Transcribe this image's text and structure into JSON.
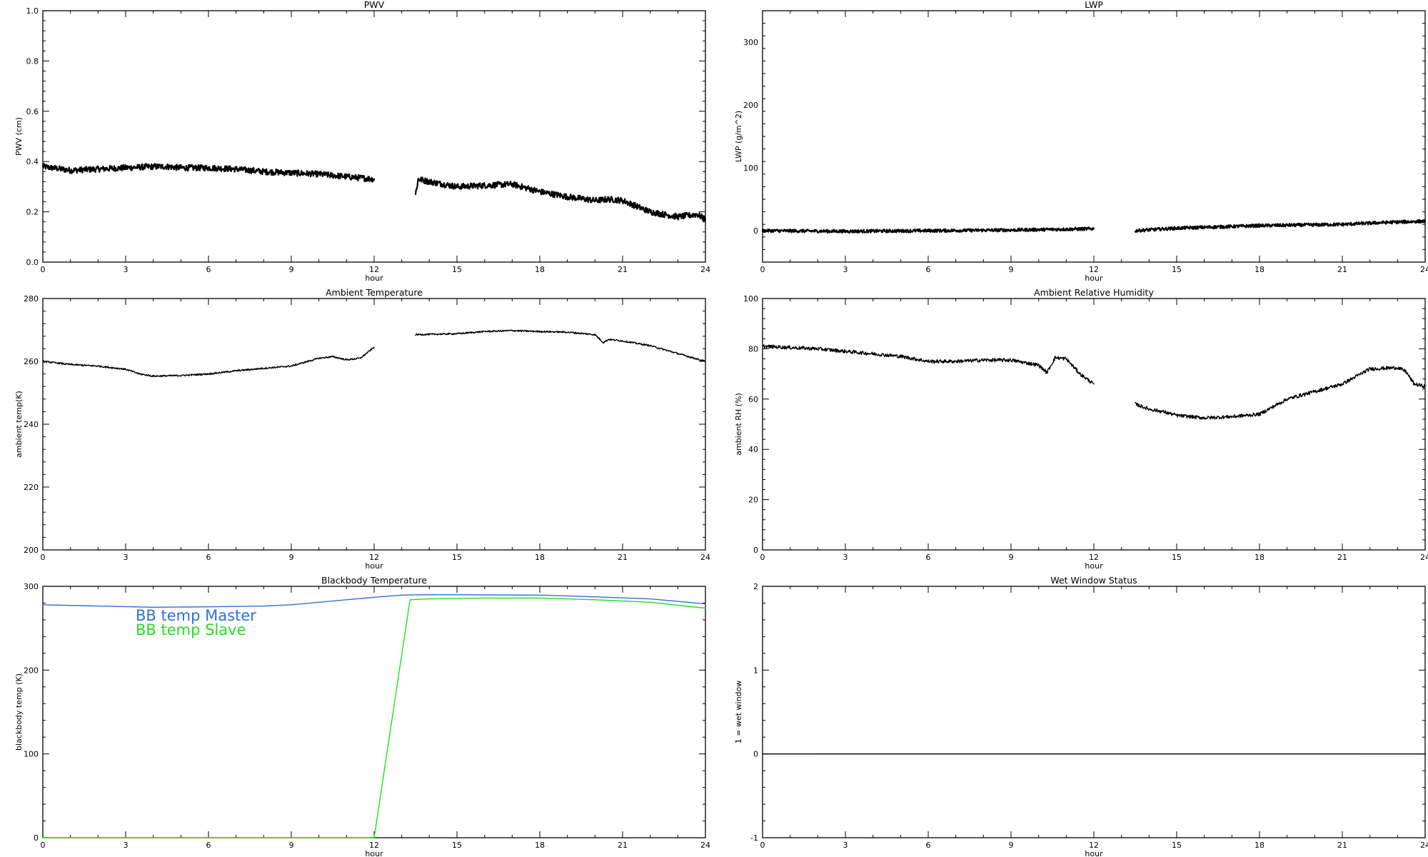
{
  "chart_data": [
    {
      "id": "pwv",
      "type": "line",
      "title": "PWV",
      "xlabel": "hour",
      "ylabel": "PWV (cm)",
      "xlim": [
        0,
        24
      ],
      "ylim": [
        0,
        1.0
      ],
      "xticks": [
        "0",
        "3",
        "6",
        "9",
        "12",
        "15",
        "18",
        "21",
        "24"
      ],
      "yticks": [
        "0.0",
        "0.2",
        "0.4",
        "0.6",
        "0.8",
        "1.0"
      ],
      "ytick_values": [
        0,
        0.2,
        0.4,
        0.6,
        0.8,
        1.0
      ],
      "noise": 0.012,
      "series": [
        {
          "color": "#000000",
          "segments": [
            [
              [
                0,
                0.38
              ],
              [
                1,
                0.365
              ],
              [
                2,
                0.37
              ],
              [
                3,
                0.375
              ],
              [
                4,
                0.38
              ],
              [
                4.5,
                0.38
              ],
              [
                5,
                0.375
              ],
              [
                6,
                0.375
              ],
              [
                7,
                0.37
              ],
              [
                8,
                0.36
              ],
              [
                9,
                0.355
              ],
              [
                10,
                0.35
              ],
              [
                11,
                0.34
              ],
              [
                12,
                0.33
              ]
            ],
            [
              [
                13.5,
                0.27
              ],
              [
                13.6,
                0.33
              ],
              [
                14,
                0.32
              ],
              [
                15,
                0.3
              ],
              [
                16,
                0.305
              ],
              [
                17,
                0.31
              ],
              [
                18,
                0.28
              ],
              [
                19,
                0.26
              ],
              [
                20,
                0.245
              ],
              [
                20.5,
                0.25
              ],
              [
                21,
                0.245
              ],
              [
                22,
                0.2
              ],
              [
                23,
                0.18
              ],
              [
                23.7,
                0.19
              ],
              [
                24,
                0.17
              ]
            ]
          ]
        }
      ]
    },
    {
      "id": "lwp",
      "type": "line",
      "title": "LWP",
      "xlabel": "hour",
      "ylabel": "LWP (g/m^2)",
      "xlim": [
        0,
        24
      ],
      "ylim": [
        -50,
        350
      ],
      "xticks": [
        "0",
        "3",
        "6",
        "9",
        "12",
        "15",
        "18",
        "21",
        "24"
      ],
      "yticks": [
        "0",
        "100",
        "200",
        "300"
      ],
      "ytick_values": [
        0,
        100,
        200,
        300
      ],
      "noise": 2.5,
      "series": [
        {
          "color": "#000000",
          "segments": [
            [
              [
                0,
                0
              ],
              [
                3,
                -1
              ],
              [
                6,
                0
              ],
              [
                9,
                1
              ],
              [
                12,
                3
              ]
            ],
            [
              [
                13.5,
                0
              ],
              [
                15,
                4
              ],
              [
                18,
                8
              ],
              [
                21,
                10
              ],
              [
                22.5,
                13
              ],
              [
                24,
                15
              ]
            ]
          ]
        }
      ]
    },
    {
      "id": "ambient-temperature",
      "type": "line",
      "title": "Ambient Temperature",
      "xlabel": "hour",
      "ylabel": "ambient temp(K)",
      "xlim": [
        0,
        24
      ],
      "ylim": [
        200,
        280
      ],
      "xticks": [
        "0",
        "3",
        "6",
        "9",
        "12",
        "15",
        "18",
        "21",
        "24"
      ],
      "yticks": [
        "200",
        "220",
        "240",
        "260",
        "280"
      ],
      "ytick_values": [
        200,
        220,
        240,
        260,
        280
      ],
      "noise": 0.25,
      "series": [
        {
          "color": "#000000",
          "segments": [
            [
              [
                0,
                260
              ],
              [
                1,
                259
              ],
              [
                2,
                258.5
              ],
              [
                3,
                257.5
              ],
              [
                3.5,
                256
              ],
              [
                4,
                255.3
              ],
              [
                5,
                255.5
              ],
              [
                6,
                256
              ],
              [
                7,
                257
              ],
              [
                8,
                257.8
              ],
              [
                9,
                258.5
              ],
              [
                10,
                261
              ],
              [
                10.5,
                261.5
              ],
              [
                11,
                260.5
              ],
              [
                11.5,
                261
              ],
              [
                12,
                264.5
              ]
            ],
            [
              [
                13.5,
                268.5
              ],
              [
                15,
                268.8
              ],
              [
                16,
                269.5
              ],
              [
                17,
                269.8
              ],
              [
                18,
                269.5
              ],
              [
                19,
                269.3
              ],
              [
                20,
                268.5
              ],
              [
                20.3,
                266
              ],
              [
                20.5,
                267
              ],
              [
                21,
                266.5
              ],
              [
                22,
                265
              ],
              [
                23,
                262.5
              ],
              [
                24,
                260
              ]
            ]
          ]
        }
      ]
    },
    {
      "id": "ambient-rh",
      "type": "line",
      "title": "Ambient Relative Humidity",
      "xlabel": "hour",
      "ylabel": "ambient RH (%)",
      "xlim": [
        0,
        24
      ],
      "ylim": [
        0,
        100
      ],
      "xticks": [
        "0",
        "3",
        "6",
        "9",
        "12",
        "15",
        "18",
        "21",
        "24"
      ],
      "yticks": [
        "0",
        "20",
        "40",
        "60",
        "80",
        "100"
      ],
      "ytick_values": [
        0,
        20,
        40,
        60,
        80,
        100
      ],
      "noise": 0.7,
      "series": [
        {
          "color": "#000000",
          "segments": [
            [
              [
                0,
                81
              ],
              [
                1,
                80.5
              ],
              [
                2,
                80
              ],
              [
                3,
                79
              ],
              [
                4,
                78
              ],
              [
                5,
                77
              ],
              [
                6,
                75
              ],
              [
                7,
                75
              ],
              [
                8,
                75.5
              ],
              [
                9,
                75.5
              ],
              [
                10,
                73.5
              ],
              [
                10.3,
                70.5
              ],
              [
                10.6,
                76.5
              ],
              [
                11,
                76
              ],
              [
                11.5,
                70
              ],
              [
                12,
                66
              ]
            ],
            [
              [
                13.5,
                58
              ],
              [
                14,
                56
              ],
              [
                14.5,
                55
              ],
              [
                15,
                53.5
              ],
              [
                16,
                52.5
              ],
              [
                17,
                53
              ],
              [
                18,
                54
              ],
              [
                19,
                60
              ],
              [
                20,
                63
              ],
              [
                21,
                66
              ],
              [
                21.5,
                69
              ],
              [
                22,
                72
              ],
              [
                23,
                72.5
              ],
              [
                23.3,
                71
              ],
              [
                23.6,
                66
              ],
              [
                24,
                65
              ]
            ]
          ]
        }
      ]
    },
    {
      "id": "blackbody-temperature",
      "type": "line",
      "title": "Blackbody Temperature",
      "xlabel": "hour",
      "ylabel": "blackbody temp (K)",
      "xlim": [
        0,
        24
      ],
      "ylim": [
        0,
        300
      ],
      "xticks": [
        "0",
        "3",
        "6",
        "9",
        "12",
        "15",
        "18",
        "21",
        "24"
      ],
      "yticks": [
        "0",
        "100",
        "200",
        "300"
      ],
      "ytick_values": [
        0,
        100,
        200,
        300
      ],
      "noise": 0,
      "legend_placement": "top-left",
      "series": [
        {
          "name": "BB temp Master",
          "color": "#2f6fdc",
          "segments": [
            [
              [
                0,
                278
              ],
              [
                2,
                276.5
              ],
              [
                4,
                275
              ],
              [
                6,
                275.5
              ],
              [
                8,
                276.5
              ],
              [
                9,
                278
              ],
              [
                10,
                281
              ],
              [
                11,
                284
              ],
              [
                12,
                287
              ],
              [
                13,
                289.5
              ],
              [
                14,
                290
              ],
              [
                15,
                290
              ],
              [
                16,
                289.8
              ],
              [
                18,
                289.5
              ],
              [
                20,
                287.5
              ],
              [
                22,
                285
              ],
              [
                24,
                279
              ]
            ]
          ]
        },
        {
          "name": "BB temp Slave",
          "color": "#22dd22",
          "segments": [
            [
              [
                0,
                0
              ],
              [
                12,
                0
              ],
              [
                13.3,
                284
              ],
              [
                14,
                285
              ],
              [
                16,
                286
              ],
              [
                18,
                286
              ],
              [
                20,
                284
              ],
              [
                22,
                281
              ],
              [
                24,
                274
              ]
            ]
          ]
        }
      ]
    },
    {
      "id": "wet-window-status",
      "type": "line",
      "title": "Wet Window Status",
      "xlabel": "hour",
      "ylabel": "1 = wet window",
      "xlim": [
        0,
        24
      ],
      "ylim": [
        -1,
        2
      ],
      "xticks": [
        "0",
        "3",
        "6",
        "9",
        "12",
        "15",
        "18",
        "21",
        "24"
      ],
      "yticks": [
        "-1",
        "0",
        "1",
        "2"
      ],
      "ytick_values": [
        -1,
        0,
        1,
        2
      ],
      "noise": 0,
      "series": [
        {
          "color": "#000000",
          "segments": [
            [
              [
                0,
                0
              ],
              [
                24,
                0
              ]
            ]
          ]
        }
      ]
    }
  ]
}
